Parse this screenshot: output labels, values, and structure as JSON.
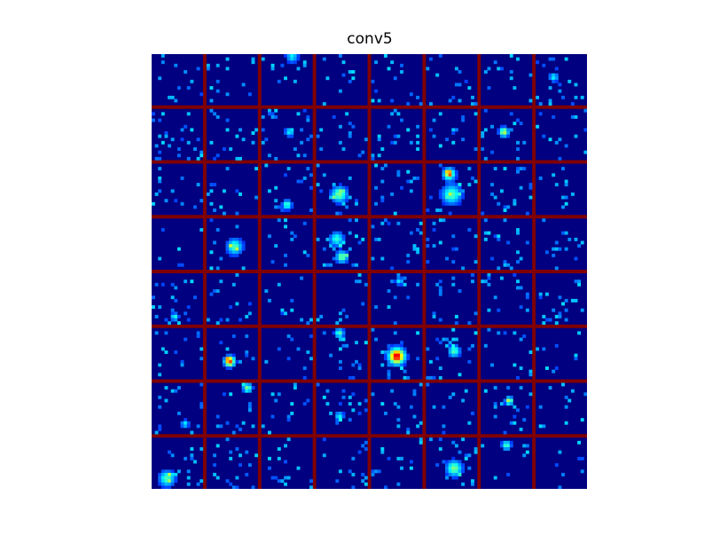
{
  "title": "conv5",
  "colors": {
    "background": "#000080",
    "separator": "#800000",
    "colormap": "jet"
  },
  "grid": {
    "rows": 8,
    "cols": 8
  }
}
